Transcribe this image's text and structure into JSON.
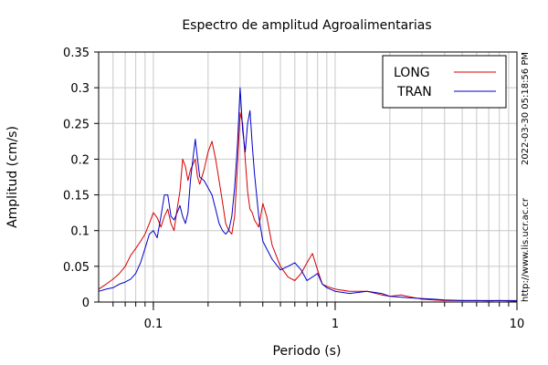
{
  "chart_data": {
    "type": "line",
    "title": "Espectro de amplitud Agroalimentarias",
    "xlabel": "Periodo (s)",
    "ylabel": "Amplitud (cm/s)",
    "x_scale": "log",
    "xlim": [
      0.05,
      10
    ],
    "ylim": [
      0,
      0.35
    ],
    "x_ticks": [
      {
        "value": 0.1,
        "label": "0.1"
      },
      {
        "value": 1,
        "label": "1"
      },
      {
        "value": 10,
        "label": "10"
      }
    ],
    "y_ticks": [
      {
        "value": 0,
        "label": "0"
      },
      {
        "value": 0.05,
        "label": "0.05"
      },
      {
        "value": 0.1,
        "label": "0.1"
      },
      {
        "value": 0.15,
        "label": "0.15"
      },
      {
        "value": 0.2,
        "label": "0.2"
      },
      {
        "value": 0.25,
        "label": "0.25"
      },
      {
        "value": 0.3,
        "label": "0.3"
      },
      {
        "value": 0.35,
        "label": "0.35"
      }
    ],
    "grid": true,
    "legend_position": "top-right",
    "series": [
      {
        "name": "LONG",
        "color": "#d40000",
        "points": [
          [
            0.05,
            0.018
          ],
          [
            0.055,
            0.025
          ],
          [
            0.06,
            0.032
          ],
          [
            0.065,
            0.04
          ],
          [
            0.07,
            0.05
          ],
          [
            0.075,
            0.065
          ],
          [
            0.08,
            0.075
          ],
          [
            0.085,
            0.085
          ],
          [
            0.09,
            0.095
          ],
          [
            0.095,
            0.11
          ],
          [
            0.1,
            0.125
          ],
          [
            0.105,
            0.118
          ],
          [
            0.11,
            0.105
          ],
          [
            0.115,
            0.12
          ],
          [
            0.12,
            0.13
          ],
          [
            0.125,
            0.11
          ],
          [
            0.13,
            0.1
          ],
          [
            0.135,
            0.13
          ],
          [
            0.14,
            0.155
          ],
          [
            0.145,
            0.2
          ],
          [
            0.15,
            0.19
          ],
          [
            0.155,
            0.17
          ],
          [
            0.16,
            0.185
          ],
          [
            0.17,
            0.2
          ],
          [
            0.175,
            0.175
          ],
          [
            0.18,
            0.165
          ],
          [
            0.19,
            0.185
          ],
          [
            0.2,
            0.21
          ],
          [
            0.21,
            0.225
          ],
          [
            0.22,
            0.2
          ],
          [
            0.23,
            0.17
          ],
          [
            0.24,
            0.14
          ],
          [
            0.25,
            0.11
          ],
          [
            0.26,
            0.1
          ],
          [
            0.27,
            0.095
          ],
          [
            0.28,
            0.12
          ],
          [
            0.29,
            0.19
          ],
          [
            0.3,
            0.265
          ],
          [
            0.31,
            0.25
          ],
          [
            0.32,
            0.2
          ],
          [
            0.33,
            0.155
          ],
          [
            0.34,
            0.13
          ],
          [
            0.35,
            0.125
          ],
          [
            0.36,
            0.115
          ],
          [
            0.38,
            0.105
          ],
          [
            0.4,
            0.138
          ],
          [
            0.42,
            0.12
          ],
          [
            0.45,
            0.08
          ],
          [
            0.5,
            0.05
          ],
          [
            0.55,
            0.035
          ],
          [
            0.6,
            0.03
          ],
          [
            0.65,
            0.04
          ],
          [
            0.7,
            0.055
          ],
          [
            0.75,
            0.068
          ],
          [
            0.8,
            0.045
          ],
          [
            0.85,
            0.025
          ],
          [
            0.9,
            0.022
          ],
          [
            1.0,
            0.018
          ],
          [
            1.2,
            0.015
          ],
          [
            1.5,
            0.015
          ],
          [
            1.8,
            0.01
          ],
          [
            2.0,
            0.008
          ],
          [
            2.3,
            0.01
          ],
          [
            2.6,
            0.007
          ],
          [
            3.0,
            0.004
          ],
          [
            3.5,
            0.003
          ],
          [
            4.0,
            0.002
          ],
          [
            5.0,
            0.002
          ],
          [
            6.0,
            0.002
          ],
          [
            7.0,
            0.0015
          ],
          [
            8.0,
            0.002
          ],
          [
            9.0,
            0.0015
          ],
          [
            10.0,
            0.001
          ]
        ]
      },
      {
        "name": "TRAN",
        "color": "#0000c8",
        "points": [
          [
            0.05,
            0.015
          ],
          [
            0.055,
            0.018
          ],
          [
            0.06,
            0.02
          ],
          [
            0.065,
            0.025
          ],
          [
            0.07,
            0.028
          ],
          [
            0.075,
            0.032
          ],
          [
            0.08,
            0.04
          ],
          [
            0.085,
            0.055
          ],
          [
            0.09,
            0.075
          ],
          [
            0.095,
            0.095
          ],
          [
            0.1,
            0.1
          ],
          [
            0.105,
            0.09
          ],
          [
            0.11,
            0.12
          ],
          [
            0.115,
            0.15
          ],
          [
            0.12,
            0.15
          ],
          [
            0.125,
            0.12
          ],
          [
            0.13,
            0.115
          ],
          [
            0.135,
            0.125
          ],
          [
            0.14,
            0.135
          ],
          [
            0.145,
            0.12
          ],
          [
            0.15,
            0.11
          ],
          [
            0.155,
            0.125
          ],
          [
            0.16,
            0.17
          ],
          [
            0.165,
            0.2
          ],
          [
            0.17,
            0.228
          ],
          [
            0.175,
            0.2
          ],
          [
            0.18,
            0.175
          ],
          [
            0.19,
            0.17
          ],
          [
            0.2,
            0.16
          ],
          [
            0.21,
            0.15
          ],
          [
            0.22,
            0.13
          ],
          [
            0.23,
            0.11
          ],
          [
            0.24,
            0.1
          ],
          [
            0.25,
            0.095
          ],
          [
            0.26,
            0.1
          ],
          [
            0.27,
            0.12
          ],
          [
            0.28,
            0.16
          ],
          [
            0.29,
            0.22
          ],
          [
            0.3,
            0.3
          ],
          [
            0.31,
            0.24
          ],
          [
            0.32,
            0.21
          ],
          [
            0.33,
            0.25
          ],
          [
            0.34,
            0.268
          ],
          [
            0.35,
            0.22
          ],
          [
            0.36,
            0.18
          ],
          [
            0.38,
            0.12
          ],
          [
            0.4,
            0.085
          ],
          [
            0.45,
            0.06
          ],
          [
            0.5,
            0.045
          ],
          [
            0.55,
            0.05
          ],
          [
            0.6,
            0.055
          ],
          [
            0.65,
            0.045
          ],
          [
            0.7,
            0.03
          ],
          [
            0.75,
            0.035
          ],
          [
            0.8,
            0.04
          ],
          [
            0.85,
            0.025
          ],
          [
            0.9,
            0.02
          ],
          [
            1.0,
            0.015
          ],
          [
            1.2,
            0.012
          ],
          [
            1.5,
            0.015
          ],
          [
            1.8,
            0.012
          ],
          [
            2.0,
            0.008
          ],
          [
            2.5,
            0.006
          ],
          [
            3.0,
            0.005
          ],
          [
            3.5,
            0.004
          ],
          [
            4.0,
            0.003
          ],
          [
            5.0,
            0.002
          ],
          [
            6.0,
            0.002
          ],
          [
            7.0,
            0.002
          ],
          [
            8.0,
            0.002
          ],
          [
            9.0,
            0.002
          ],
          [
            10.0,
            0.002
          ]
        ]
      }
    ]
  },
  "side_note_date": "2022-03-30 05:18:56 PM",
  "side_note_url": "http://www.lis.ucr.ac.cr"
}
